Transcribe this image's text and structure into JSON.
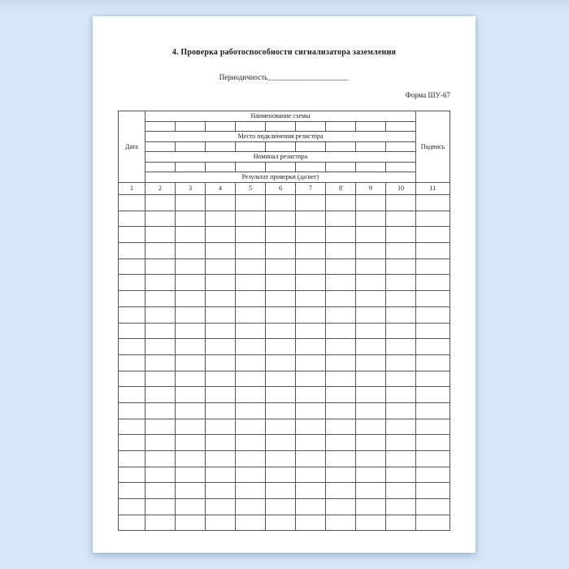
{
  "document": {
    "title": "4. Проверка работоспособности сигнализатора заземления",
    "periodicity": {
      "label": "Периодичность",
      "line": "____________________"
    },
    "form_code": "Форма ШУ-67"
  },
  "table": {
    "date_header": "Дата",
    "signature_header": "Подпись",
    "group_headers": [
      "Наименование схемы",
      "Место подключения резистора",
      "Номинал резистора",
      "Результат проверки (да/нет)"
    ],
    "column_numbers": [
      "1",
      "2",
      "3",
      "4",
      "5",
      "6",
      "7",
      "8",
      "9",
      "10",
      "11"
    ],
    "middle_column_count": 9,
    "body_row_count": 21,
    "body_cells_empty": true
  },
  "colors": {
    "background": "#d7e8fa",
    "background_top_edge": "#c8dbee",
    "page": "#ffffff",
    "table_border": "#555555",
    "text": "#1b1b1b"
  }
}
